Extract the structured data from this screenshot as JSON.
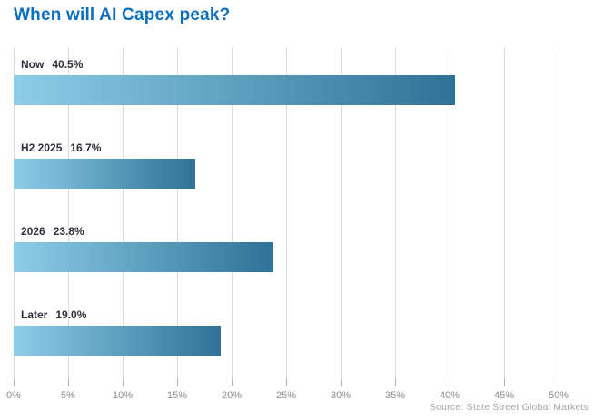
{
  "title": "When will AI Capex peak?",
  "source": "Source: State Street Global Markets",
  "colors": {
    "title_text": "#0b6fc0",
    "bar_label_text": "#30303c",
    "axis_tick_text": "#8c8c8c",
    "source_text": "#a6a6a6",
    "gridline": "#dcdcdc",
    "tick_mark": "#b3b3b3",
    "bar_gradient_start": "#8ecde8",
    "bar_gradient_end": "#2e7296"
  },
  "chart_data": {
    "type": "bar",
    "orientation": "horizontal",
    "title": "When will AI Capex peak?",
    "categories": [
      "Now",
      "H2 2025",
      "2026",
      "Later"
    ],
    "values": [
      40.5,
      16.7,
      23.8,
      19.0
    ],
    "value_labels": [
      "40.5%",
      "16.7%",
      "23.8%",
      "19.0%"
    ],
    "xlabel": "",
    "ylabel": "",
    "xlim": [
      0,
      50
    ],
    "x_ticks": [
      0,
      5,
      10,
      15,
      20,
      25,
      30,
      35,
      40,
      45,
      50
    ],
    "x_tick_labels": [
      "0%",
      "5%",
      "10%",
      "15%",
      "20%",
      "25%",
      "30%",
      "35%",
      "40%",
      "45%",
      "50%"
    ],
    "grid": "vertical",
    "legend": "none",
    "source": "Source: State Street Global Markets"
  }
}
